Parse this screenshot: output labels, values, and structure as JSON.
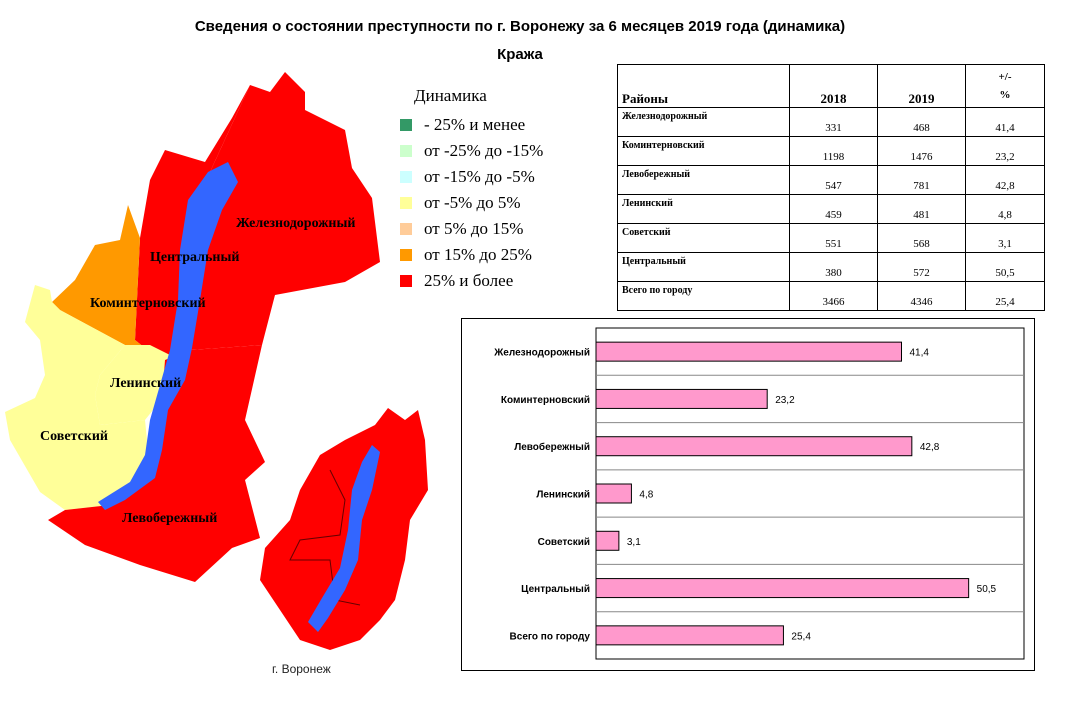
{
  "page": {
    "title": "Сведения о состоянии преступности по г. Воронежу за 6 месяцев 2019 года (динамика)",
    "subtitle": "Кража"
  },
  "map": {
    "caption": "г. Воронеж",
    "labels": {
      "zheleznodorozhny": "Железнодорожный",
      "tsentralny": "Центральный",
      "kominternovsky": "Коминтерновский",
      "leninsky": "Ленинский",
      "sovetsky": "Советский",
      "levoberezhny": "Левобережный"
    },
    "colors": {
      "red": "#ff0000",
      "orange": "#ff9900",
      "yellow": "#ffff99",
      "river": "#3366ff"
    }
  },
  "legend": {
    "title": "Динамика",
    "items": [
      {
        "label": "- 25% и менее",
        "color": "#339966"
      },
      {
        "label": "от -25% до -15%",
        "color": "#ccffcc"
      },
      {
        "label": "от -15% до -5%",
        "color": "#ccffff"
      },
      {
        "label": "от -5% до 5%",
        "color": "#ffff99"
      },
      {
        "label": "от 5% до 15%",
        "color": "#ffcc99"
      },
      {
        "label": "от 15% до 25%",
        "color": "#ff9900"
      },
      {
        "label": "25% и более",
        "color": "#ff0000"
      }
    ]
  },
  "table": {
    "headers": [
      "Районы",
      "2018",
      "2019",
      "+/-",
      "%"
    ],
    "rows": [
      {
        "name": "Железнодорожный",
        "y2018": "331",
        "y2019": "468",
        "pct": "41,4"
      },
      {
        "name": "Коминтерновский",
        "y2018": "1198",
        "y2019": "1476",
        "pct": "23,2"
      },
      {
        "name": "Левобережный",
        "y2018": "547",
        "y2019": "781",
        "pct": "42,8"
      },
      {
        "name": "Ленинский",
        "y2018": "459",
        "y2019": "481",
        "pct": "4,8"
      },
      {
        "name": "Советский",
        "y2018": "551",
        "y2019": "568",
        "pct": "3,1"
      },
      {
        "name": "Центральный",
        "y2018": "380",
        "y2019": "572",
        "pct": "50,5"
      },
      {
        "name": "Всего по городу",
        "y2018": "3466",
        "y2019": "4346",
        "pct": "25,4"
      }
    ]
  },
  "chart_data": {
    "type": "bar",
    "orientation": "horizontal",
    "categories": [
      "Железнодорожный",
      "Коминтерновский",
      "Левобережный",
      "Ленинский",
      "Советский",
      "Центральный",
      "Всего по городу"
    ],
    "values": [
      41.4,
      23.2,
      42.8,
      4.8,
      3.1,
      50.5,
      25.4
    ],
    "value_labels": [
      "41,4",
      "23,2",
      "42,8",
      "4,8",
      "3,1",
      "50,5",
      "25,4"
    ],
    "xlim": [
      0,
      58
    ],
    "bar_color": "#ff99cc",
    "grid": true
  }
}
